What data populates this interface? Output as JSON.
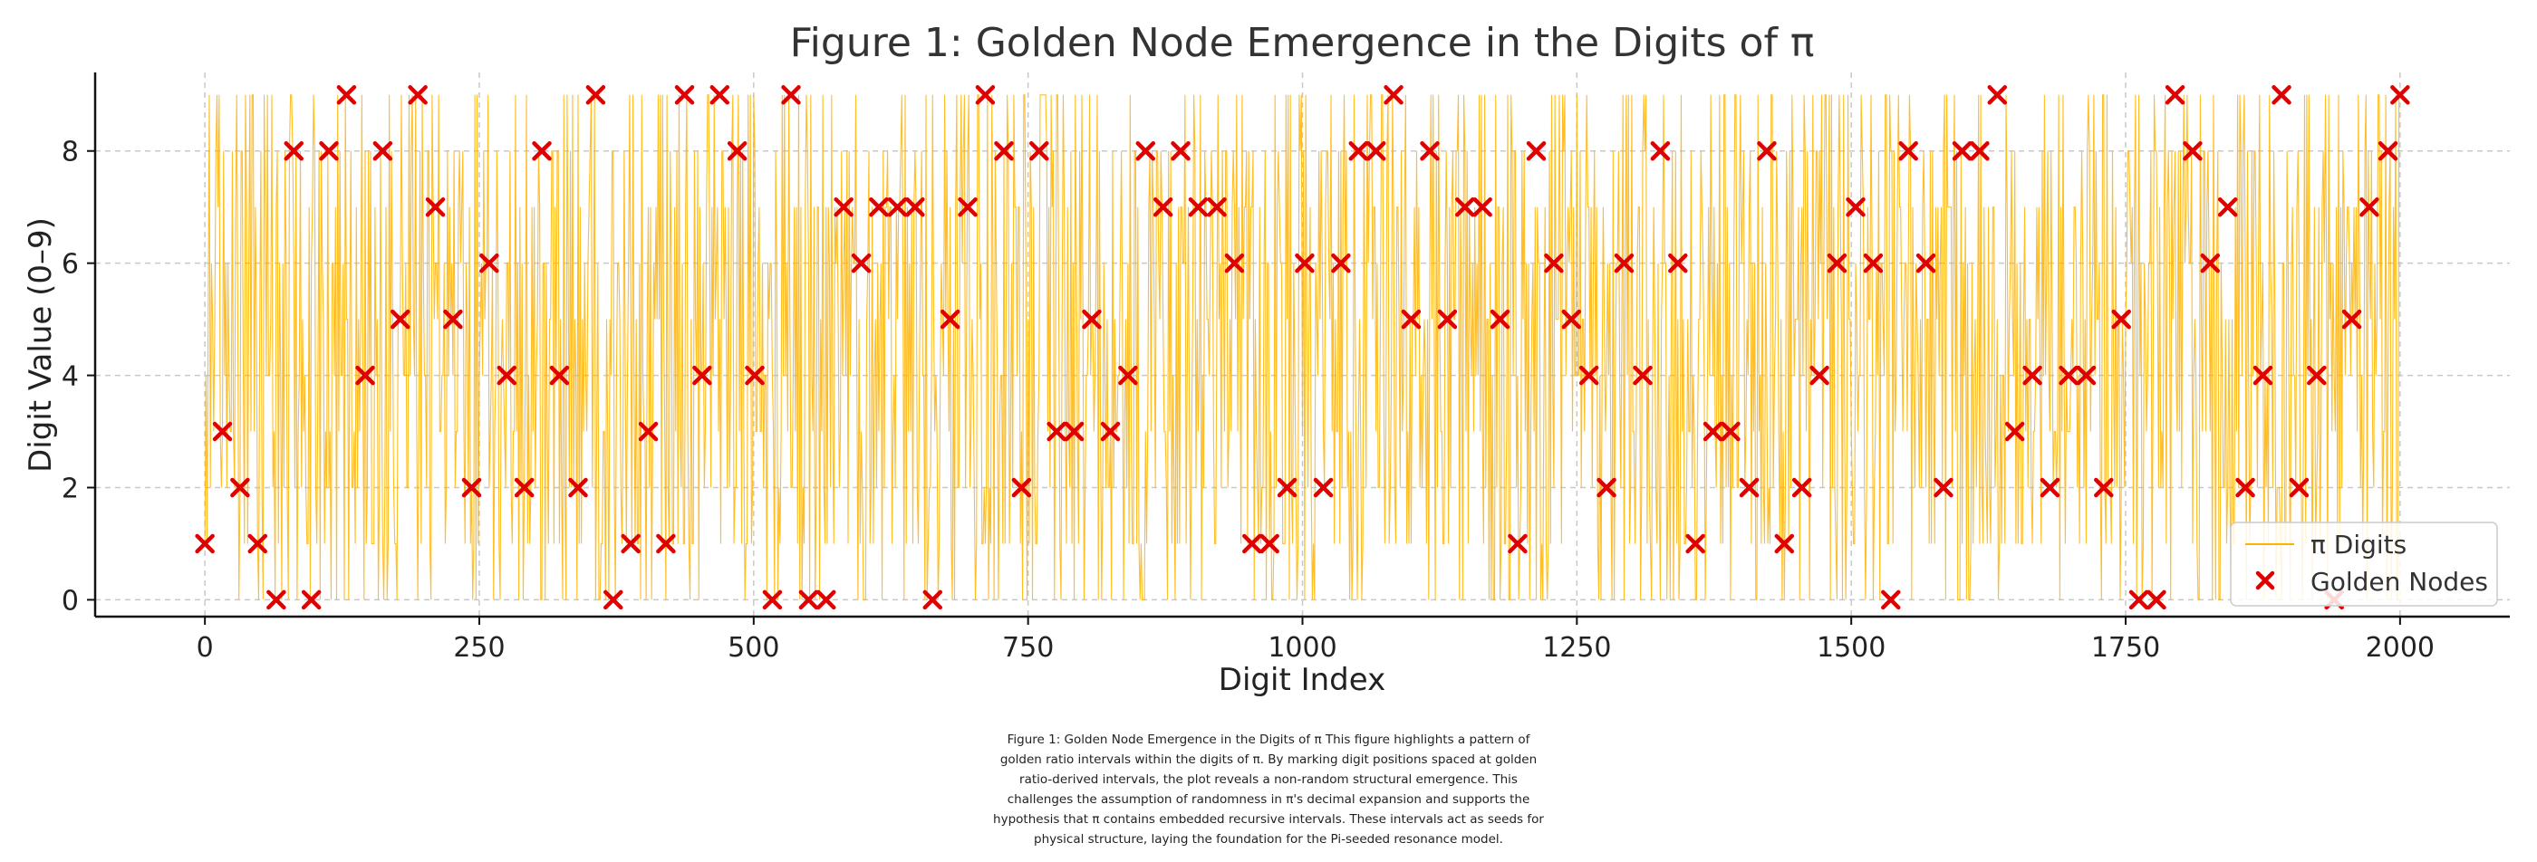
{
  "chart_data": {
    "type": "line",
    "title": "Figure 1: Golden Node Emergence in the Digits of π",
    "xlabel": "Digit Index",
    "ylabel": "Digit Value (0–9)",
    "xlim": [
      -100,
      2100
    ],
    "ylim": [
      -0.3,
      9.4
    ],
    "x_ticks": [
      0,
      250,
      500,
      750,
      1000,
      1250,
      1500,
      1750,
      2000
    ],
    "x_tick_labels": [
      "0",
      "250",
      "500",
      "750",
      "1000",
      "1250",
      "1500",
      "1750",
      "2000"
    ],
    "y_ticks": [
      0,
      2,
      4,
      6,
      8
    ],
    "y_tick_labels": [
      "0",
      "2",
      "4",
      "6",
      "8"
    ],
    "grid": true,
    "legend_position": "bottom-right",
    "colors": {
      "digits": "#ffb300",
      "nodes": "#e00000"
    },
    "series": [
      {
        "name": "π Digits",
        "style": "line",
        "x_start": 0,
        "x_end": 2000,
        "note": "dense line of the first 2000 decimal digits of π, values 0–9"
      },
      {
        "name": "Golden Nodes",
        "style": "x-marker",
        "x": [
          0,
          16,
          32,
          48,
          65,
          81,
          97,
          113,
          129,
          146,
          162,
          178,
          194,
          210,
          226,
          243,
          259,
          275,
          291,
          307,
          323,
          340,
          356,
          372,
          388,
          404,
          420,
          437,
          453,
          469,
          485,
          501,
          517,
          534,
          550,
          566,
          582,
          598,
          614,
          631,
          647,
          663,
          679,
          695,
          711,
          728,
          744,
          760,
          776,
          792,
          808,
          825,
          841,
          857,
          873,
          889,
          905,
          922,
          938,
          954,
          970,
          986,
          1002,
          1019,
          1035,
          1051,
          1067,
          1083,
          1099,
          1116,
          1132,
          1148,
          1164,
          1180,
          1196,
          1213,
          1229,
          1245,
          1261,
          1277,
          1293,
          1310,
          1326,
          1342,
          1358,
          1374,
          1390,
          1407,
          1423,
          1439,
          1455,
          1471,
          1487,
          1504,
          1520,
          1536,
          1552,
          1568,
          1584,
          1601,
          1617,
          1633,
          1649,
          1665,
          1681,
          1698,
          1714,
          1730,
          1746,
          1762,
          1778,
          1795,
          1811,
          1827,
          1843,
          1859,
          1875,
          1892,
          1908,
          1924,
          1940,
          1956,
          1972,
          1989,
          2000
        ],
        "y": [
          1,
          3,
          2,
          1,
          0,
          8,
          0,
          8,
          9,
          4,
          8,
          5,
          9,
          7,
          5,
          2,
          6,
          4,
          2,
          8,
          4,
          2,
          9,
          0,
          1,
          3,
          1,
          9,
          4,
          9,
          8,
          4,
          0,
          9,
          0,
          0,
          7,
          6,
          7,
          7,
          7,
          0,
          5,
          7,
          9,
          8,
          2,
          8,
          3,
          3,
          5,
          3,
          4,
          8,
          7,
          8,
          7,
          7,
          6,
          1,
          1,
          2,
          6,
          2,
          6,
          8,
          8,
          9,
          5,
          8,
          5,
          7,
          7,
          5,
          1,
          8,
          6,
          5,
          4,
          2,
          6,
          4,
          8,
          6,
          1,
          3,
          3,
          2,
          8,
          1,
          2,
          4,
          6,
          7,
          6,
          0,
          8,
          6,
          2,
          8,
          8,
          9,
          3,
          4,
          2,
          4,
          4,
          2,
          5,
          0,
          0,
          9,
          8,
          6,
          7,
          2,
          4,
          9,
          2,
          4,
          0,
          5,
          7,
          8,
          9
        ]
      }
    ]
  },
  "caption": {
    "lines": [
      "Figure 1: Golden Node Emergence in the Digits of π  This figure highlights a pattern of",
      "golden ratio intervals within the digits of π. By marking digit positions spaced at golden",
      "ratio-derived intervals, the plot reveals a non-random structural emergence. This",
      "challenges the assumption of randomness in π's decimal expansion and supports the",
      "hypothesis that π contains embedded recursive intervals. These intervals act as seeds for",
      "physical structure, laying the foundation for the Pi-seeded resonance model."
    ]
  }
}
